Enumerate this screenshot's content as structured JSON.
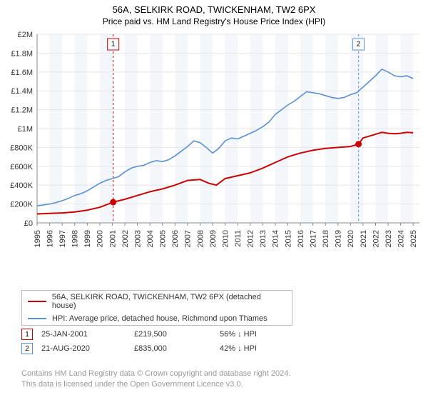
{
  "title": "56A, SELKIRK ROAD, TWICKENHAM, TW2 6PX",
  "subtitle": "Price paid vs. HM Land Registry's House Price Index (HPI)",
  "chart": {
    "type": "line",
    "background_color": "#ffffff",
    "shaded_bg_color": "#f3f6fb",
    "grid_color": "#e6e6e6",
    "axis_color": "#888888",
    "ylim": [
      0,
      2000000
    ],
    "ytick_step": 200000,
    "yticks": [
      "£0",
      "£200K",
      "£400K",
      "£600K",
      "£800K",
      "£1M",
      "£1.2M",
      "£1.4M",
      "£1.6M",
      "£1.8M",
      "£2M"
    ],
    "xlim": [
      1995,
      2025.5
    ],
    "xticks": [
      1995,
      1996,
      1997,
      1998,
      1999,
      2000,
      2001,
      2002,
      2003,
      2004,
      2005,
      2006,
      2007,
      2008,
      2009,
      2010,
      2011,
      2012,
      2013,
      2014,
      2015,
      2016,
      2017,
      2018,
      2019,
      2020,
      2021,
      2022,
      2023,
      2024,
      2025
    ],
    "tick_fontsize": 11,
    "series": {
      "price_paid": {
        "color": "#cc0000",
        "width": 2,
        "points": [
          [
            1995.0,
            95000
          ],
          [
            1996.0,
            100000
          ],
          [
            1997.0,
            105000
          ],
          [
            1998.0,
            115000
          ],
          [
            1999.0,
            135000
          ],
          [
            2000.0,
            165000
          ],
          [
            2001.07,
            219500
          ],
          [
            2002.0,
            250000
          ],
          [
            2003.0,
            290000
          ],
          [
            2004.0,
            330000
          ],
          [
            2005.0,
            360000
          ],
          [
            2006.0,
            400000
          ],
          [
            2007.0,
            450000
          ],
          [
            2008.0,
            460000
          ],
          [
            2008.7,
            420000
          ],
          [
            2009.3,
            400000
          ],
          [
            2010.0,
            470000
          ],
          [
            2011.0,
            500000
          ],
          [
            2012.0,
            530000
          ],
          [
            2013.0,
            580000
          ],
          [
            2014.0,
            640000
          ],
          [
            2015.0,
            700000
          ],
          [
            2016.0,
            740000
          ],
          [
            2017.0,
            770000
          ],
          [
            2018.0,
            790000
          ],
          [
            2019.0,
            800000
          ],
          [
            2020.0,
            810000
          ],
          [
            2020.64,
            835000
          ],
          [
            2021.0,
            900000
          ],
          [
            2021.5,
            920000
          ],
          [
            2022.0,
            940000
          ],
          [
            2022.5,
            960000
          ],
          [
            2023.0,
            950000
          ],
          [
            2023.5,
            945000
          ],
          [
            2024.0,
            950000
          ],
          [
            2024.5,
            960000
          ],
          [
            2025.0,
            955000
          ]
        ]
      },
      "hpi": {
        "color": "#5b8fd6",
        "width": 1.6,
        "points": [
          [
            1995.0,
            180000
          ],
          [
            1995.5,
            190000
          ],
          [
            1996.0,
            200000
          ],
          [
            1996.5,
            215000
          ],
          [
            1997.0,
            235000
          ],
          [
            1997.5,
            260000
          ],
          [
            1998.0,
            290000
          ],
          [
            1998.5,
            310000
          ],
          [
            1999.0,
            340000
          ],
          [
            1999.5,
            380000
          ],
          [
            2000.0,
            420000
          ],
          [
            2000.5,
            450000
          ],
          [
            2001.0,
            470000
          ],
          [
            2001.5,
            490000
          ],
          [
            2002.0,
            540000
          ],
          [
            2002.5,
            580000
          ],
          [
            2003.0,
            600000
          ],
          [
            2003.5,
            610000
          ],
          [
            2004.0,
            640000
          ],
          [
            2004.5,
            660000
          ],
          [
            2005.0,
            650000
          ],
          [
            2005.5,
            670000
          ],
          [
            2006.0,
            710000
          ],
          [
            2006.5,
            760000
          ],
          [
            2007.0,
            810000
          ],
          [
            2007.5,
            870000
          ],
          [
            2008.0,
            850000
          ],
          [
            2008.5,
            800000
          ],
          [
            2009.0,
            740000
          ],
          [
            2009.5,
            790000
          ],
          [
            2010.0,
            870000
          ],
          [
            2010.5,
            900000
          ],
          [
            2011.0,
            890000
          ],
          [
            2011.5,
            920000
          ],
          [
            2012.0,
            950000
          ],
          [
            2012.5,
            980000
          ],
          [
            2013.0,
            1020000
          ],
          [
            2013.5,
            1070000
          ],
          [
            2014.0,
            1150000
          ],
          [
            2014.5,
            1200000
          ],
          [
            2015.0,
            1250000
          ],
          [
            2015.5,
            1290000
          ],
          [
            2016.0,
            1340000
          ],
          [
            2016.5,
            1390000
          ],
          [
            2017.0,
            1380000
          ],
          [
            2017.5,
            1370000
          ],
          [
            2018.0,
            1350000
          ],
          [
            2018.5,
            1330000
          ],
          [
            2019.0,
            1320000
          ],
          [
            2019.5,
            1330000
          ],
          [
            2020.0,
            1360000
          ],
          [
            2020.5,
            1380000
          ],
          [
            2021.0,
            1440000
          ],
          [
            2021.5,
            1500000
          ],
          [
            2022.0,
            1560000
          ],
          [
            2022.5,
            1630000
          ],
          [
            2023.0,
            1600000
          ],
          [
            2023.5,
            1560000
          ],
          [
            2024.0,
            1550000
          ],
          [
            2024.5,
            1560000
          ],
          [
            2025.0,
            1530000
          ]
        ]
      }
    },
    "events": [
      {
        "n": 1,
        "year": 2001.07,
        "value": 219500,
        "color": "#cc0000"
      },
      {
        "n": 2,
        "year": 2020.64,
        "value": 835000,
        "color": "#5b8fd6"
      }
    ]
  },
  "legend": {
    "items": [
      {
        "color": "#cc0000",
        "label": "56A, SELKIRK ROAD, TWICKENHAM, TW2 6PX (detached house)"
      },
      {
        "color": "#5b8fd6",
        "label": "HPI: Average price, detached house, Richmond upon Thames"
      }
    ]
  },
  "events_table": [
    {
      "n": "1",
      "color": "#cc0000",
      "date": "25-JAN-2001",
      "price": "£219,500",
      "delta": "56% ↓ HPI"
    },
    {
      "n": "2",
      "color": "#5b8fd6",
      "date": "21-AUG-2020",
      "price": "£835,000",
      "delta": "42% ↓ HPI"
    }
  ],
  "footer": {
    "line1": "Contains HM Land Registry data © Crown copyright and database right 2024.",
    "line2": "This data is licensed under the Open Government Licence v3.0."
  }
}
